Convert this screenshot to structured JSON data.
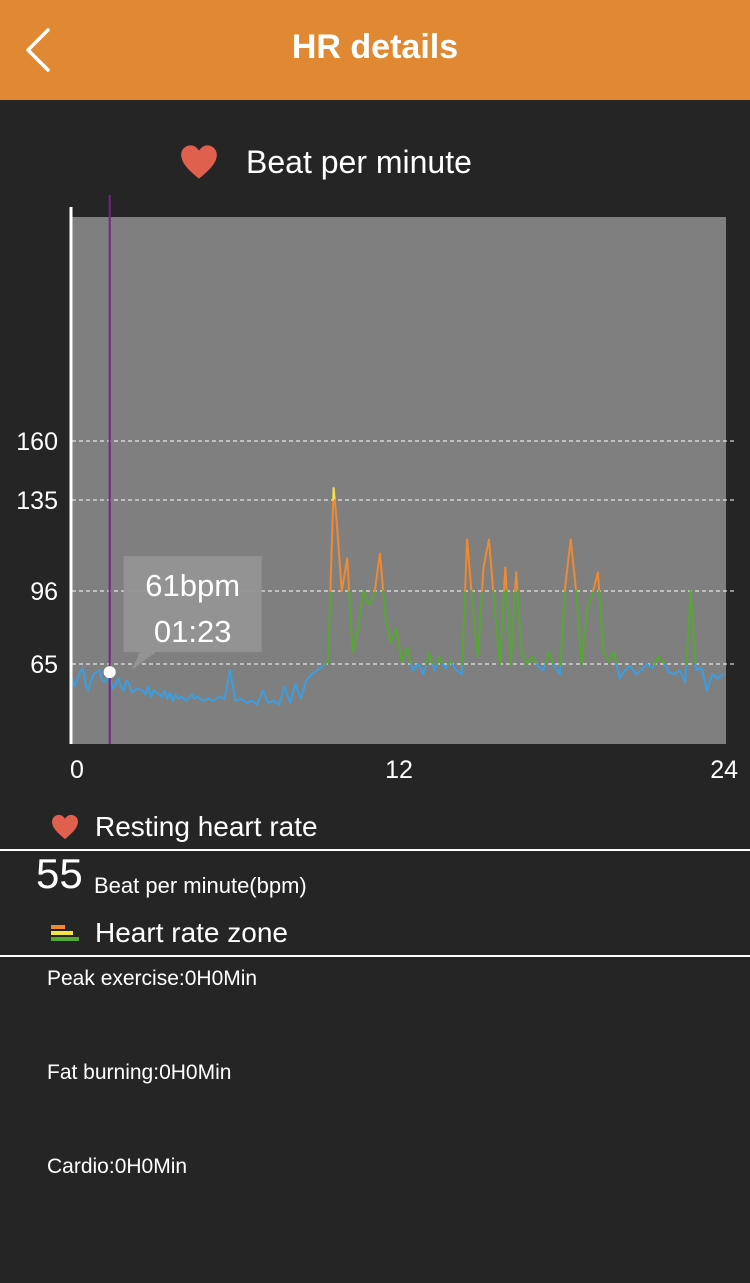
{
  "header": {
    "title": "HR details",
    "back_icon": "chevron-left-icon",
    "background_color": "#e08932"
  },
  "chart_header": {
    "icon": "heart-icon",
    "label": "Beat per minute",
    "icon_color": "#e0604e"
  },
  "chart_data": {
    "type": "line",
    "x_ticks": [
      0,
      12,
      24
    ],
    "xlim": [
      0,
      24
    ],
    "y_ticks": [
      65,
      96,
      135,
      160
    ],
    "y_gridlines": [
      65,
      96,
      135,
      160
    ],
    "grid": true,
    "series_colors": {
      "below_65": "#3a9ee0",
      "65_to_96": "#55a831",
      "96_to_135": "#f08a30",
      "above_135": "#f3e24a"
    },
    "cursor": {
      "time": "01:23",
      "bpm": 61
    },
    "tooltip": {
      "value": "61bpm",
      "time": "01:23"
    },
    "x": [
      0.0,
      0.1,
      0.15,
      0.3,
      0.4,
      0.5,
      0.6,
      0.7,
      0.8,
      0.9,
      1.0,
      1.1,
      1.2,
      1.35,
      1.5,
      1.6,
      1.7,
      1.8,
      1.9,
      2.0,
      2.1,
      2.2,
      2.4,
      2.6,
      2.7,
      2.8,
      2.9,
      3.0,
      3.1,
      3.2,
      3.3,
      3.4,
      3.5,
      3.6,
      3.7,
      3.8,
      3.9,
      4.0,
      4.2,
      4.4,
      4.5,
      4.6,
      4.8,
      5.0,
      5.2,
      5.4,
      5.6,
      5.8,
      6.0,
      6.2,
      6.4,
      6.6,
      6.8,
      7.0,
      7.2,
      7.4,
      7.6,
      7.8,
      8.0,
      8.2,
      8.4,
      8.6,
      8.8,
      9.0,
      9.2,
      9.4,
      9.6,
      9.7,
      9.9,
      10.1,
      10.3,
      10.5,
      10.7,
      10.9,
      11.1,
      11.3,
      11.5,
      11.7,
      11.9,
      12.1,
      12.3,
      12.5,
      12.7,
      12.9,
      13.1,
      13.3,
      13.5,
      13.7,
      13.9,
      14.1,
      14.3,
      14.5,
      14.7,
      14.9,
      15.1,
      15.3,
      15.5,
      15.7,
      15.9,
      16.1,
      16.3,
      16.5,
      16.7,
      16.9,
      17.1,
      17.3,
      17.5,
      17.7,
      17.9,
      18.1,
      18.3,
      18.5,
      18.7,
      18.9,
      19.1,
      19.3,
      19.5,
      19.7,
      19.9,
      20.1,
      20.3,
      20.5,
      20.7,
      20.9,
      21.1,
      21.3,
      21.5,
      21.7,
      21.9,
      22.1,
      22.3,
      22.5,
      22.7,
      22.9,
      23.1,
      23.3,
      23.5,
      23.7,
      23.9
    ],
    "values": [
      58,
      54,
      56,
      61,
      63,
      55,
      52,
      57,
      60,
      61,
      62,
      57,
      56,
      59,
      53,
      55,
      58,
      54,
      52,
      57,
      55,
      51,
      53,
      52,
      50,
      54,
      49,
      52,
      51,
      50,
      49,
      52,
      48,
      51,
      47,
      50,
      48,
      49,
      47,
      50,
      48,
      49,
      47,
      48,
      47,
      49,
      48,
      62,
      47,
      48,
      46,
      47,
      45,
      52,
      46,
      47,
      45,
      54,
      46,
      55,
      48,
      57,
      60,
      62,
      64,
      66,
      140,
      128,
      96,
      110,
      70,
      80,
      96,
      90,
      95,
      112,
      85,
      74,
      80,
      66,
      72,
      62,
      65,
      60,
      70,
      62,
      68,
      63,
      66,
      62,
      60,
      118,
      90,
      68,
      106,
      118,
      90,
      65,
      106,
      65,
      104,
      70,
      65,
      68,
      64,
      62,
      70,
      64,
      60,
      98,
      118,
      96,
      65,
      88,
      95,
      104,
      70,
      66,
      70,
      58,
      62,
      64,
      60,
      62,
      65,
      63,
      68,
      66,
      61,
      60,
      62,
      56,
      96,
      62,
      63,
      52,
      60,
      58,
      60
    ]
  },
  "resting": {
    "icon": "heart-icon",
    "label": "Resting heart rate",
    "value": "55",
    "unit": "Beat per minute(bpm)"
  },
  "zone": {
    "icon": "zone-bars-icon",
    "label": "Heart rate zone",
    "items": [
      "Peak exercise:0H0Min",
      "Fat burning:0H0Min",
      "Cardio:0H0Min"
    ]
  }
}
